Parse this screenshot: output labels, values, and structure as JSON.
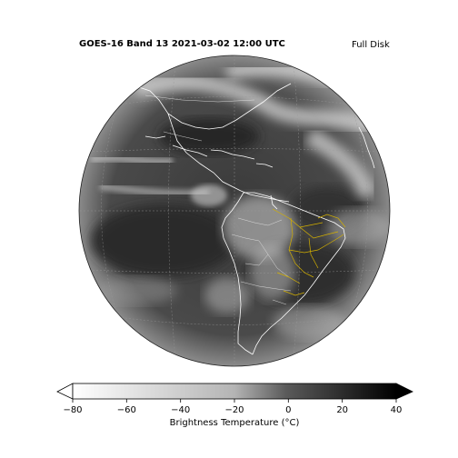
{
  "figure": {
    "title": "GOES-16 Band 13 2021-03-02 12:00 UTC",
    "title_right": "Full Disk",
    "image": "infrared satellite full-disk view of the Americas with coastlines and state borders",
    "colors": {
      "coastline": "#ffffff",
      "brazil_states": "#d4b000",
      "disk_edge": "#222222"
    }
  },
  "colorbar": {
    "label": "Brightness Temperature (°C)",
    "ticks": [
      "−80",
      "−60",
      "−40",
      "−20",
      "0",
      "20",
      "40"
    ],
    "range": [
      -80,
      40
    ],
    "cmap_start": "#ffffff",
    "cmap_end": "#000000",
    "extend": "both"
  }
}
